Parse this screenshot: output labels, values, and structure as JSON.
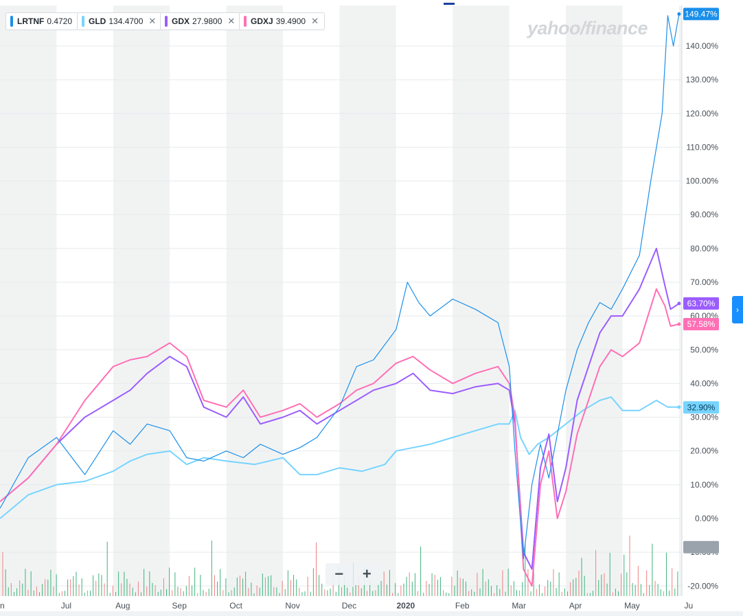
{
  "legend": [
    {
      "symbol": "LRTNF",
      "price": "0.4720",
      "color": "#1a8fea",
      "removable": false
    },
    {
      "symbol": "GLD",
      "price": "134.4700",
      "color": "#76d4ff",
      "removable": true
    },
    {
      "symbol": "GDX",
      "price": "27.9800",
      "color": "#9b5cff",
      "removable": true
    },
    {
      "symbol": "GDXJ",
      "price": "39.4900",
      "color": "#ff6fb5",
      "removable": true
    }
  ],
  "close_glyph": "✕",
  "watermark": "yahoo/finance",
  "zoom": {
    "minus": "−",
    "plus": "+"
  },
  "right_tab_icon": "›",
  "chart_data": {
    "type": "line",
    "x_ticks": [
      "Jun",
      "Jul",
      "Aug",
      "Sep",
      "Oct",
      "Nov",
      "Dec",
      "2020",
      "Feb",
      "Mar",
      "Apr",
      "May",
      "Jun"
    ],
    "x_tick_labels": [
      "un",
      "Jul",
      "Aug",
      "Sep",
      "Oct",
      "Nov",
      "Dec",
      "2020",
      "Feb",
      "Mar",
      "Apr",
      "May",
      "Ju"
    ],
    "y_ticks": [
      -20,
      -10,
      0,
      10,
      20,
      30,
      40,
      50,
      60,
      70,
      80,
      90,
      100,
      110,
      120,
      130,
      140
    ],
    "y_tick_labels": [
      "-20.00%",
      "-10.00%",
      "0.00%",
      "10.00%",
      "20.00%",
      "30.00%",
      "40.00%",
      "50.00%",
      "60.00%",
      "70.00%",
      "80.00%",
      "90.00%",
      "100.00%",
      "110.00%",
      "120.00%",
      "130.00%",
      "140.00%"
    ],
    "ylim": [
      -23,
      152
    ],
    "xlim": [
      0,
      12.05
    ],
    "grid": true,
    "series": [
      {
        "name": "GLD",
        "color": "#76d4ff",
        "end_label": "32.90%",
        "end_value": 32.9,
        "x": [
          0,
          0.5,
          1,
          1.5,
          2,
          2.3,
          2.6,
          3,
          3.3,
          3.6,
          4,
          4.5,
          5,
          5.3,
          5.6,
          6,
          6.4,
          6.8,
          7,
          7.3,
          7.6,
          8,
          8.4,
          8.8,
          9,
          9.1,
          9.2,
          9.35,
          9.5,
          9.7,
          10,
          10.3,
          10.6,
          10.8,
          11,
          11.3,
          11.6,
          11.8,
          12
        ],
        "y": [
          0,
          7,
          10,
          11,
          14,
          17,
          19,
          20,
          16,
          18,
          17,
          16,
          18,
          13,
          13,
          15,
          14,
          16,
          20,
          21,
          22,
          24,
          26,
          28,
          28,
          32,
          24,
          19,
          22,
          24,
          28,
          32,
          35,
          36,
          32,
          32,
          35,
          33,
          33
        ]
      },
      {
        "name": "GDX",
        "color": "#9b5cff",
        "end_label": "63.70%",
        "end_value": 63.7,
        "x": [
          0,
          0.5,
          1,
          1.5,
          2,
          2.3,
          2.6,
          3,
          3.3,
          3.6,
          4,
          4.3,
          4.6,
          5,
          5.3,
          5.6,
          6,
          6.3,
          6.6,
          7,
          7.3,
          7.6,
          8,
          8.4,
          8.8,
          9,
          9.1,
          9.25,
          9.4,
          9.55,
          9.7,
          9.85,
          10,
          10.2,
          10.4,
          10.6,
          10.8,
          11,
          11.3,
          11.6,
          11.75,
          11.85,
          12
        ],
        "y": [
          5,
          12,
          22,
          30,
          35,
          38,
          43,
          48,
          45,
          33,
          30,
          36,
          28,
          30,
          32,
          28,
          32,
          35,
          38,
          40,
          43,
          38,
          37,
          39,
          40,
          38,
          28,
          -10,
          -15,
          15,
          25,
          5,
          15,
          35,
          45,
          55,
          60,
          60,
          68,
          80,
          69,
          62,
          63.7
        ]
      },
      {
        "name": "GDXJ",
        "color": "#ff6fb5",
        "end_label": "57.58%",
        "end_value": 57.58,
        "x": [
          0,
          0.5,
          1,
          1.5,
          2,
          2.3,
          2.6,
          3,
          3.3,
          3.6,
          4,
          4.3,
          4.6,
          5,
          5.3,
          5.6,
          6,
          6.3,
          6.6,
          7,
          7.3,
          7.6,
          8,
          8.4,
          8.8,
          9,
          9.1,
          9.25,
          9.4,
          9.55,
          9.7,
          9.85,
          10,
          10.2,
          10.4,
          10.6,
          10.8,
          11,
          11.3,
          11.6,
          11.75,
          11.85,
          12
        ],
        "y": [
          5,
          12,
          22,
          35,
          45,
          47,
          48,
          52,
          48,
          35,
          33,
          38,
          30,
          32,
          34,
          30,
          34,
          38,
          40,
          46,
          48,
          44,
          40,
          43,
          45,
          40,
          30,
          -15,
          -20,
          10,
          20,
          0,
          8,
          25,
          35,
          45,
          50,
          48,
          52,
          68,
          63,
          57,
          57.58
        ]
      },
      {
        "name": "LRTNF",
        "color": "#1a8fea",
        "end_label": "149.47%",
        "end_value": 149.47,
        "x": [
          0,
          0.5,
          1,
          1.5,
          2,
          2.3,
          2.6,
          3,
          3.3,
          3.6,
          4,
          4.3,
          4.6,
          5,
          5.3,
          5.6,
          6,
          6.3,
          6.6,
          7,
          7.2,
          7.4,
          7.6,
          8,
          8.4,
          8.8,
          9,
          9.1,
          9.25,
          9.4,
          9.55,
          9.7,
          9.85,
          10,
          10.2,
          10.4,
          10.6,
          10.8,
          11,
          11.3,
          11.5,
          11.7,
          11.8,
          11.9,
          12
        ],
        "y": [
          3,
          18,
          24,
          13,
          26,
          22,
          28,
          26,
          18,
          17,
          20,
          18,
          22,
          19,
          21,
          24,
          33,
          45,
          47,
          56,
          70,
          64,
          60,
          65,
          62,
          58,
          45,
          20,
          -12,
          10,
          22,
          12,
          25,
          38,
          50,
          58,
          64,
          62,
          68,
          78,
          100,
          120,
          149,
          140,
          149.47
        ]
      }
    ],
    "volume_bars": "shown, red/green, bottom band"
  }
}
